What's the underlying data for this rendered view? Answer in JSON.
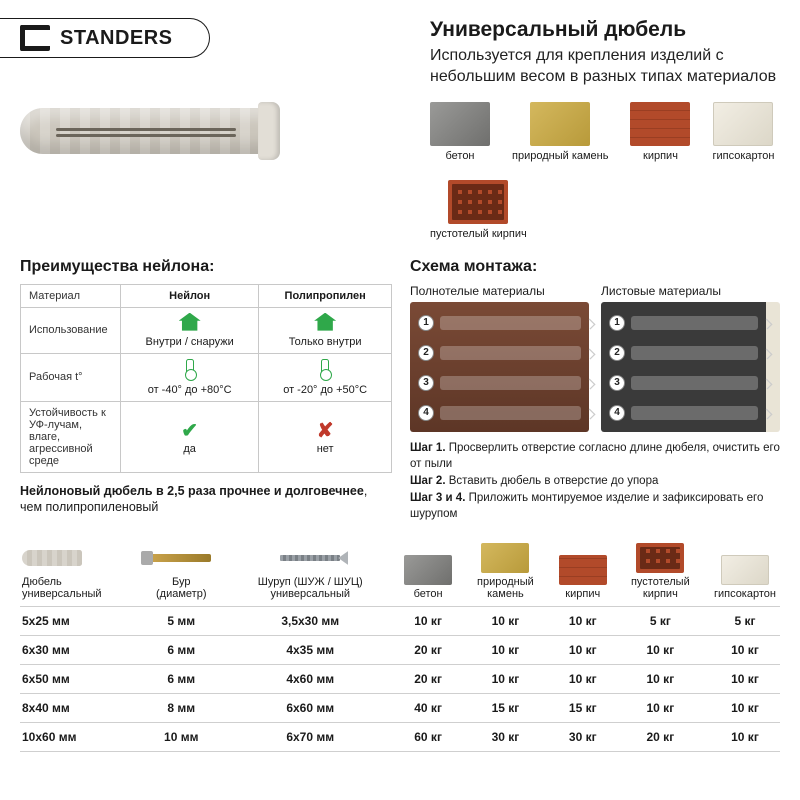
{
  "brand": "STANDERS",
  "title": "Универсальный дюбель",
  "subtitle": "Используется для крепления изделий с небольшим весом в разных типах материалов",
  "materials": {
    "concrete": "бетон",
    "stone": "природный камень",
    "brick": "кирпич",
    "gypsum": "гипсокартон",
    "hollow": "пустотелый кирпич"
  },
  "advantages": {
    "title": "Преимущества нейлона:",
    "col_material": "Материал",
    "col_nylon": "Нейлон",
    "col_pp": "Полипропилен",
    "row_use": "Использование",
    "use_nylon": "Внутри / снаружи",
    "use_pp": "Только внутри",
    "row_temp": "Рабочая t°",
    "temp_nylon": "от -40° до +80°С",
    "temp_pp": "от -20° до +50°С",
    "row_resist": "Устойчивость к УФ-лучам, влаге, агрессивной среде",
    "resist_nylon": "да",
    "resist_pp": "нет",
    "note_pre": "Нейлоновый дюбель в 2,5 раза прочнее и долговечнее",
    "note_post": ", чем полипропиленовый"
  },
  "scheme": {
    "title": "Схема монтажа:",
    "col_solid": "Полнотелые материалы",
    "col_sheet": "Листовые материалы",
    "step1_b": "Шаг 1.",
    "step1": " Просверлить отверстие согласно длине дюбеля, очистить его от пыли",
    "step2_b": "Шаг 2.",
    "step2": " Вставить дюбель в отверстие до упора",
    "step34_b": "Шаг 3 и 4.",
    "step34": " Приложить монтируемое изделие и зафиксировать его шурупом"
  },
  "table": {
    "headers": {
      "dowel": "Дюбель универсальный",
      "drill": "Бур (диаметр)",
      "screw": "Шуруп (ШУЖ / ШУЦ) универсальный",
      "concrete": "бетон",
      "stone": "природный камень",
      "brick": "кирпич",
      "hollow": "пустотелый кирпич",
      "gypsum": "гипсокартон"
    },
    "rows": [
      {
        "dowel": "5х25 мм",
        "drill": "5 мм",
        "screw": "3,5х30 мм",
        "concrete": "10 кг",
        "stone": "10 кг",
        "brick": "10 кг",
        "hollow": "5 кг",
        "gypsum": "5 кг"
      },
      {
        "dowel": "6х30 мм",
        "drill": "6 мм",
        "screw": "4х35 мм",
        "concrete": "20 кг",
        "stone": "10 кг",
        "brick": "10 кг",
        "hollow": "10 кг",
        "gypsum": "10 кг"
      },
      {
        "dowel": "6х50 мм",
        "drill": "6 мм",
        "screw": "4х60 мм",
        "concrete": "20 кг",
        "stone": "10 кг",
        "brick": "10 кг",
        "hollow": "10 кг",
        "gypsum": "10 кг"
      },
      {
        "dowel": "8х40 мм",
        "drill": "8 мм",
        "screw": "6х60 мм",
        "concrete": "40 кг",
        "stone": "15 кг",
        "brick": "15 кг",
        "hollow": "10 кг",
        "gypsum": "10 кг"
      },
      {
        "dowel": "10х60 мм",
        "drill": "10 мм",
        "screw": "6х70 мм",
        "concrete": "60 кг",
        "stone": "30 кг",
        "brick": "30 кг",
        "hollow": "20 кг",
        "gypsum": "10 кг"
      }
    ]
  }
}
